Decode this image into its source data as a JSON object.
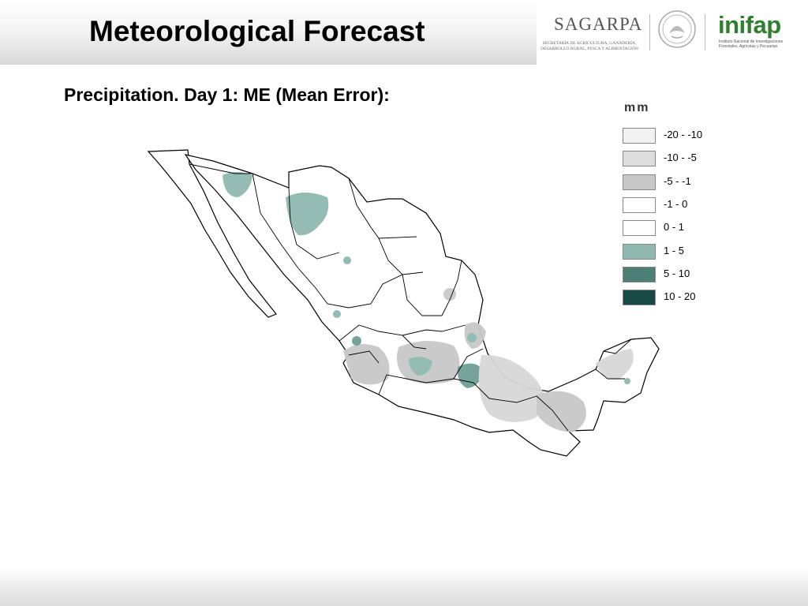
{
  "header": {
    "title": "Meteorological Forecast"
  },
  "logos": {
    "sagarpa_name": "SAGARPA",
    "sagarpa_subtitle": "SECRETARÍA DE AGRICULTURA, GANADERÍA, DESARROLLO RURAL, PESCA Y ALIMENTACIÓN",
    "inifap_name": "inifap",
    "inifap_subtitle": "Instituto Nacional de Investigaciones Forestales, Agrícolas y Pecuarias"
  },
  "subtitle": "Precipitation. Day 1: ME (Mean Error):",
  "legend": {
    "title": "mm",
    "items": [
      {
        "label": "-20 - -10",
        "color": "#f2f2f2"
      },
      {
        "label": "-10 - -5",
        "color": "#dedede"
      },
      {
        "label": "-5 - -1",
        "color": "#c8c8c8"
      },
      {
        "label": "-1 - 0",
        "color": "#ffffff"
      },
      {
        "label": "0 - 1",
        "color": "#ffffff"
      },
      {
        "label": "1 - 5",
        "color": "#8fb8b0"
      },
      {
        "label": "5 - 10",
        "color": "#4d7f77"
      },
      {
        "label": "10 - 20",
        "color": "#174a44"
      }
    ]
  }
}
